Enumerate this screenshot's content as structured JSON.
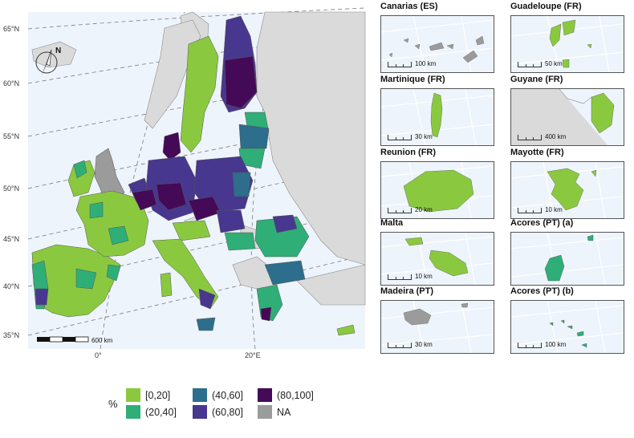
{
  "main_map": {
    "lat_labels": [
      "65°N",
      "60°N",
      "55°N",
      "50°N",
      "45°N",
      "40°N",
      "35°N"
    ],
    "lon_labels": [
      "0°",
      "20°E"
    ],
    "north_arrow": "N",
    "scale_label": "600 km"
  },
  "colors": {
    "c0_20": "#8ac93f",
    "c20_40": "#2fae78",
    "c40_60": "#2d6e8c",
    "c60_80": "#48378e",
    "c80_100": "#440a58",
    "na": "#9b9b9b",
    "sea": "#eef4fb",
    "land_other": "#dadada"
  },
  "insets": [
    {
      "title": "Canarias (ES)",
      "scale": "100 km"
    },
    {
      "title": "Guadeloupe (FR)",
      "scale": "50 km"
    },
    {
      "title": "Martinique (FR)",
      "scale": "30 km"
    },
    {
      "title": "Guyane (FR)",
      "scale": "400 km"
    },
    {
      "title": "Reunion (FR)",
      "scale": "20 km"
    },
    {
      "title": "Mayotte (FR)",
      "scale": "10 km"
    },
    {
      "title": "Malta",
      "scale": "10 km"
    },
    {
      "title": "Acores (PT) (a)",
      "scale": ""
    },
    {
      "title": "Madeira (PT)",
      "scale": "30 km"
    },
    {
      "title": "Acores (PT) (b)",
      "scale": "100 km"
    }
  ],
  "legend": {
    "title": "%",
    "items": [
      "[0,20]",
      "(20,40]",
      "(40,60]",
      "(60,80]",
      "(80,100]",
      "NA"
    ]
  }
}
